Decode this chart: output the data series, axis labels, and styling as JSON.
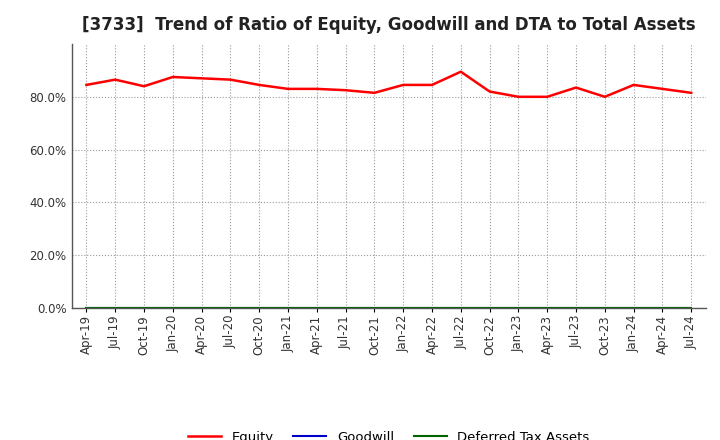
{
  "title": "[3733]  Trend of Ratio of Equity, Goodwill and DTA to Total Assets",
  "xlabels": [
    "Apr-19",
    "Jul-19",
    "Oct-19",
    "Jan-20",
    "Apr-20",
    "Jul-20",
    "Oct-20",
    "Jan-21",
    "Apr-21",
    "Jul-21",
    "Oct-21",
    "Jan-22",
    "Apr-22",
    "Jul-22",
    "Oct-22",
    "Jan-23",
    "Apr-23",
    "Jul-23",
    "Oct-23",
    "Jan-24",
    "Apr-24",
    "Jul-24"
  ],
  "equity": [
    84.5,
    86.5,
    84.0,
    87.5,
    87.0,
    86.5,
    84.5,
    83.0,
    83.0,
    82.5,
    81.5,
    84.5,
    84.5,
    89.5,
    82.0,
    80.0,
    80.0,
    83.5,
    80.0,
    84.5,
    83.0,
    81.5
  ],
  "goodwill": [
    0.0,
    0.0,
    0.0,
    0.0,
    0.0,
    0.0,
    0.0,
    0.0,
    0.0,
    0.0,
    0.0,
    0.0,
    0.0,
    0.0,
    0.0,
    0.0,
    0.0,
    0.0,
    0.0,
    0.0,
    0.0,
    0.0
  ],
  "dta": [
    0.0,
    0.0,
    0.0,
    0.0,
    0.0,
    0.0,
    0.0,
    0.0,
    0.0,
    0.0,
    0.0,
    0.0,
    0.0,
    0.0,
    0.0,
    0.0,
    0.0,
    0.0,
    0.0,
    0.0,
    0.0,
    0.0
  ],
  "equity_color": "#FF0000",
  "goodwill_color": "#0000CC",
  "dta_color": "#006600",
  "ylim": [
    0,
    100
  ],
  "yticks": [
    0,
    20,
    40,
    60,
    80
  ],
  "ytick_labels": [
    "0.0%",
    "20.0%",
    "40.0%",
    "60.0%",
    "80.0%"
  ],
  "bg_color": "#FFFFFF",
  "plot_bg_color": "#FFFFFF",
  "grid_color": "#999999",
  "legend_labels": [
    "Equity",
    "Goodwill",
    "Deferred Tax Assets"
  ],
  "title_fontsize": 12,
  "tick_fontsize": 8.5,
  "legend_fontsize": 9.5
}
